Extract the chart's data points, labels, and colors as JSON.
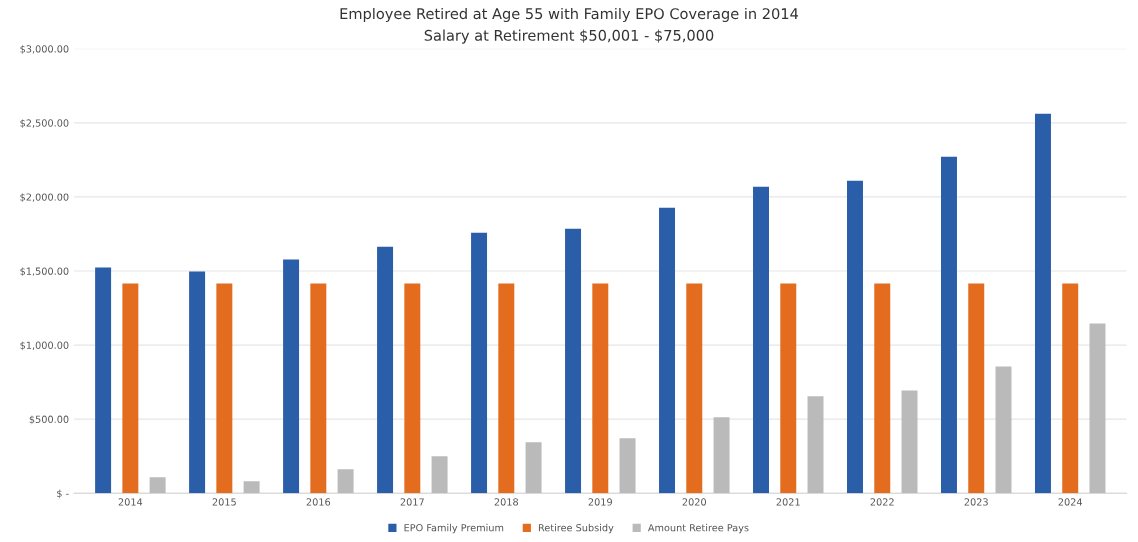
{
  "chart_data": {
    "type": "bar",
    "title": "Employee Retired at Age 55 with Family EPO Coverage in 2014",
    "subtitle": "Salary at Retirement $50,001 - $75,000",
    "categories": [
      "2014",
      "2015",
      "2016",
      "2017",
      "2018",
      "2019",
      "2020",
      "2021",
      "2022",
      "2023",
      "2024"
    ],
    "series": [
      {
        "name": "EPO Family Premium",
        "color": "#2a5ea8",
        "values": [
          1523,
          1496,
          1577,
          1664,
          1759,
          1786,
          1927,
          2069,
          2109,
          2271,
          2561
        ]
      },
      {
        "name": "Retiree Subsidy",
        "color": "#e46c1f",
        "values": [
          1415,
          1415,
          1415,
          1415,
          1415,
          1415,
          1415,
          1415,
          1415,
          1415,
          1415
        ]
      },
      {
        "name": "Amount Retiree Pays",
        "color": "#bababa",
        "values": [
          108,
          81,
          162,
          249,
          344,
          371,
          512,
          654,
          694,
          856,
          1146
        ]
      }
    ],
    "ylim": [
      0,
      3000
    ],
    "yticks": [
      {
        "value": 0,
        "label": "$ -"
      },
      {
        "value": 500,
        "label": "$500.00"
      },
      {
        "value": 1000,
        "label": "$1,000.00"
      },
      {
        "value": 1500,
        "label": "$1,500.00"
      },
      {
        "value": 2000,
        "label": "$2,000.00"
      },
      {
        "value": 2500,
        "label": "$2,500.00"
      },
      {
        "value": 3000,
        "label": "$3,000.00"
      }
    ],
    "grid": "y",
    "legend": "bottom"
  }
}
